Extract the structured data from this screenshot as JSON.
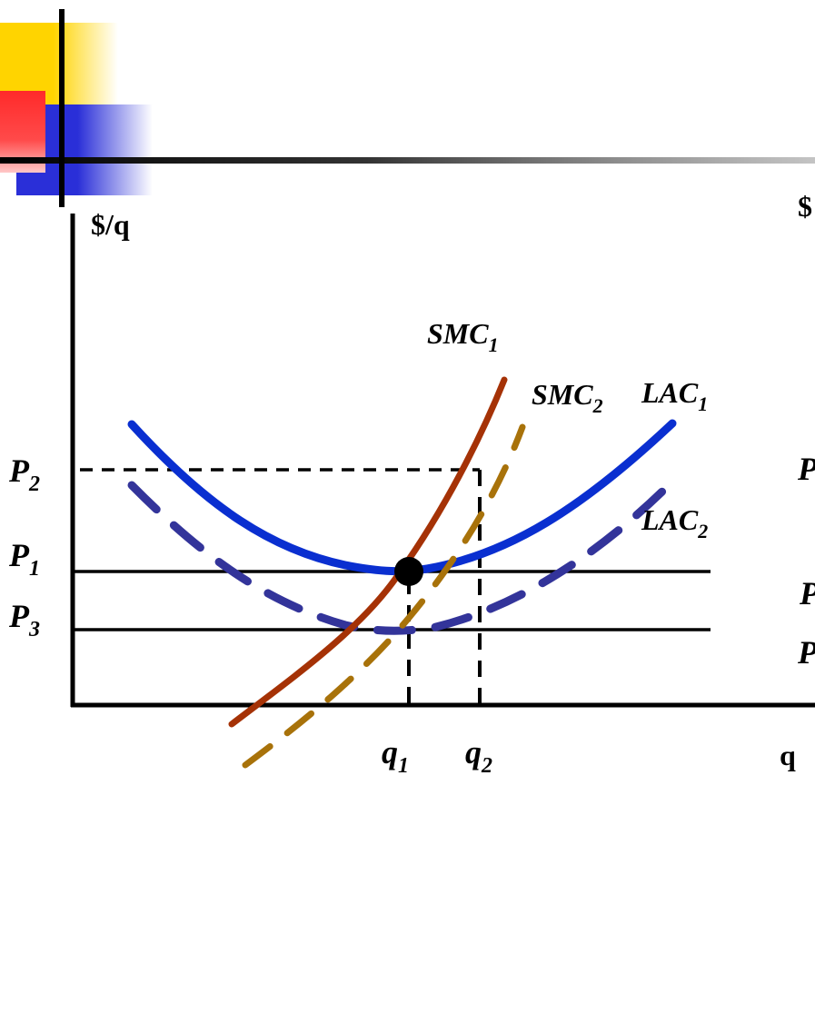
{
  "left_panel": {
    "y_axis_label": "$/q",
    "x_axis_label": "q",
    "price_labels": {
      "p2": {
        "base": "P",
        "sub": "2"
      },
      "p1": {
        "base": "P",
        "sub": "1"
      },
      "p3": {
        "base": "P",
        "sub": "3"
      }
    },
    "quantity_labels": {
      "q1": {
        "base": "q",
        "sub": "1"
      },
      "q2": {
        "base": "q",
        "sub": "2"
      }
    },
    "curve_labels": {
      "smc1": {
        "base": "SMC",
        "sub": "1"
      },
      "smc2": {
        "base": "SMC",
        "sub": "2"
      },
      "lac1": {
        "base": "LAC",
        "sub": "1"
      },
      "lac2": {
        "base": "LAC",
        "sub": "2"
      }
    }
  },
  "right_panel_cut": {
    "y_axis_fragment": "$",
    "price_fragments": [
      "P",
      "P",
      "P"
    ]
  },
  "colors": {
    "lac1": "#0a2fd0",
    "lac2": "#33349a",
    "smc1": "#a53206",
    "smc2": "#a8720a",
    "axis": "#000000",
    "deco_yellow": "#ffd400",
    "deco_red": "#ff2a2a",
    "deco_blue": "#2a2fd8"
  }
}
